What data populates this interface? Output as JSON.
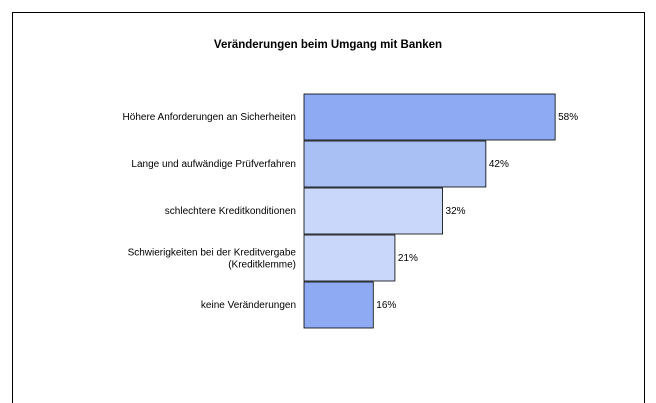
{
  "chart_data": {
    "type": "barh",
    "title": "Veränderungen beim Umgang mit Banken",
    "categories": [
      "Höhere Anforderungen an Sicherheiten",
      "Lange und aufwändige Prüfverfahren",
      "schlechtere Kreditkonditionen",
      "Schwierigkeiten bei der Kreditvergabe\n(Kreditklemme)",
      "keine Veränderungen"
    ],
    "values": [
      58,
      42,
      32,
      21,
      16
    ],
    "value_labels": [
      "58%",
      "42%",
      "32%",
      "21%",
      "16%"
    ],
    "colors": [
      "#8eaaf2",
      "#a9c0f5",
      "#c9d8fa",
      "#c9d8fa",
      "#8eaaf2"
    ]
  }
}
